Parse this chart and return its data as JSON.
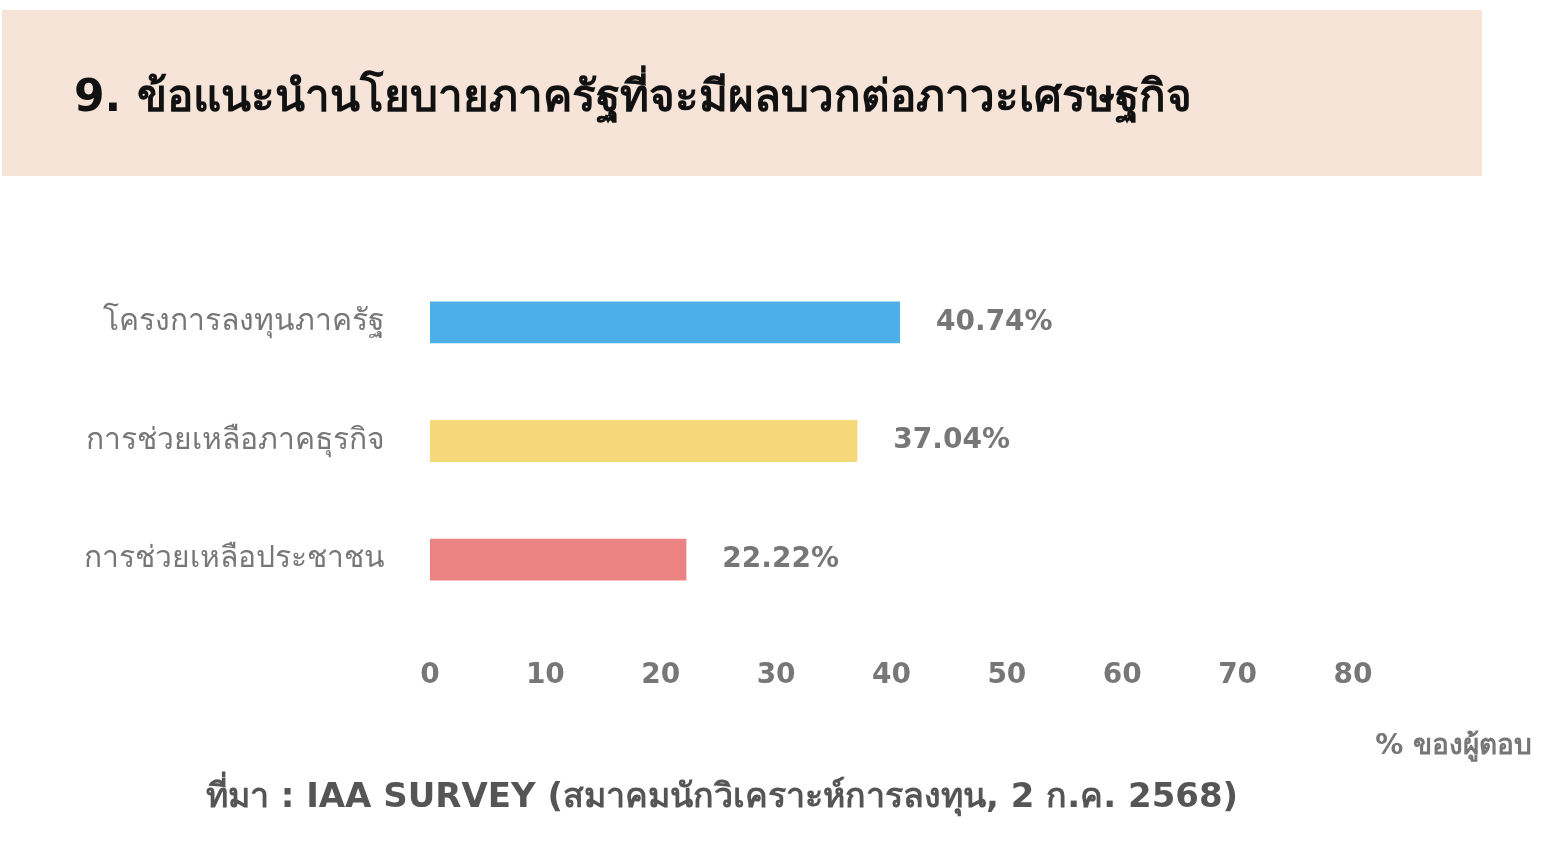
{
  "chart_data": {
    "type": "bar",
    "orientation": "horizontal",
    "title": "9. ข้อแนะนำนโยบายภาครัฐที่จะมีผลบวกต่อภาวะเศรษฐกิจ",
    "categories": [
      "โครงการลงทุนภาครัฐ",
      "การช่วยเหลือภาคธุรกิจ",
      "การช่วยเหลือประชาชน"
    ],
    "values": [
      40.74,
      37.04,
      22.22
    ],
    "colors": [
      "#4eaee8",
      "#f5d87a",
      "#ec8383"
    ],
    "value_labels": [
      "40.74%",
      "37.04%",
      "22.22%"
    ],
    "xlabel": "% ของผู้ตอบ",
    "xlim": [
      0,
      80
    ],
    "xticks": [
      0,
      10,
      20,
      30,
      40,
      50,
      60,
      70,
      80
    ],
    "grid": false,
    "annotations": [
      "ที่มา : IAA SURVEY (สมาคมนักวิเคราะห์การลงทุน, 2 ก.ค. 2568)"
    ]
  }
}
